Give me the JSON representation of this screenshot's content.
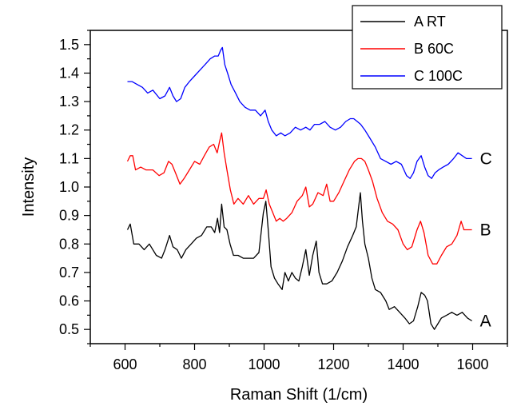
{
  "chart_data": {
    "type": "line",
    "title": "",
    "xlabel": "Raman Shift (1/cm)",
    "ylabel": "Intensity",
    "xlim": [
      500,
      1700
    ],
    "ylim": [
      0.45,
      1.55
    ],
    "xticks": [
      600,
      800,
      1000,
      1200,
      1400,
      1600
    ],
    "yticks": [
      0.5,
      0.6,
      0.7,
      0.8,
      0.9,
      1.0,
      1.1,
      1.2,
      1.3,
      1.4,
      1.5
    ],
    "ytick_labels": [
      "0.5",
      "0.6",
      "0.7",
      "0.8",
      "0.9",
      "1.0",
      "1.1",
      "1.2",
      "1.3",
      "1.4",
      "1.5"
    ],
    "grid": false,
    "legend_position": "top-right",
    "series": [
      {
        "name": "A RT",
        "end_label": "A",
        "color": "#000000",
        "x": [
          607,
          615,
          625,
          640,
          655,
          670,
          690,
          705,
          715,
          728,
          738,
          750,
          762,
          775,
          790,
          805,
          820,
          835,
          848,
          858,
          866,
          872,
          878,
          885,
          893,
          902,
          912,
          925,
          940,
          955,
          970,
          985,
          998,
          1005,
          1012,
          1020,
          1030,
          1040,
          1052,
          1060,
          1070,
          1080,
          1090,
          1100,
          1110,
          1120,
          1130,
          1140,
          1150,
          1158,
          1168,
          1180,
          1195,
          1210,
          1225,
          1240,
          1255,
          1265,
          1272,
          1277,
          1283,
          1290,
          1300,
          1310,
          1320,
          1335,
          1350,
          1360,
          1375,
          1390,
          1405,
          1418,
          1430,
          1442,
          1452,
          1462,
          1470,
          1480,
          1490,
          1500,
          1510,
          1525,
          1540,
          1555,
          1570,
          1585,
          1598
        ],
        "y": [
          0.85,
          0.87,
          0.8,
          0.8,
          0.78,
          0.8,
          0.76,
          0.75,
          0.78,
          0.83,
          0.79,
          0.78,
          0.75,
          0.78,
          0.8,
          0.82,
          0.83,
          0.86,
          0.86,
          0.84,
          0.89,
          0.84,
          0.94,
          0.86,
          0.85,
          0.8,
          0.76,
          0.76,
          0.75,
          0.75,
          0.75,
          0.77,
          0.91,
          0.95,
          0.85,
          0.72,
          0.68,
          0.66,
          0.64,
          0.7,
          0.67,
          0.7,
          0.68,
          0.67,
          0.72,
          0.78,
          0.69,
          0.76,
          0.81,
          0.7,
          0.66,
          0.66,
          0.67,
          0.7,
          0.74,
          0.79,
          0.83,
          0.86,
          0.93,
          0.98,
          0.88,
          0.8,
          0.75,
          0.68,
          0.64,
          0.63,
          0.6,
          0.57,
          0.58,
          0.56,
          0.54,
          0.52,
          0.53,
          0.58,
          0.63,
          0.62,
          0.6,
          0.52,
          0.5,
          0.52,
          0.54,
          0.55,
          0.56,
          0.55,
          0.56,
          0.54,
          0.53
        ]
      },
      {
        "name": "B 60C",
        "end_label": "B",
        "color": "#ff0000",
        "x": [
          607,
          615,
          622,
          630,
          645,
          660,
          680,
          698,
          712,
          725,
          735,
          745,
          758,
          770,
          785,
          800,
          815,
          828,
          842,
          855,
          865,
          872,
          878,
          885,
          893,
          903,
          913,
          925,
          940,
          955,
          970,
          985,
          998,
          1006,
          1015,
          1025,
          1035,
          1045,
          1055,
          1065,
          1080,
          1095,
          1110,
          1120,
          1130,
          1140,
          1155,
          1170,
          1180,
          1190,
          1200,
          1215,
          1230,
          1245,
          1260,
          1270,
          1280,
          1290,
          1300,
          1312,
          1325,
          1340,
          1355,
          1370,
          1385,
          1400,
          1412,
          1425,
          1440,
          1450,
          1460,
          1472,
          1485,
          1497,
          1510,
          1525,
          1540,
          1555,
          1567,
          1575,
          1585,
          1598
        ],
        "y": [
          1.09,
          1.11,
          1.11,
          1.06,
          1.07,
          1.06,
          1.06,
          1.04,
          1.05,
          1.09,
          1.08,
          1.05,
          1.01,
          1.03,
          1.06,
          1.09,
          1.08,
          1.11,
          1.14,
          1.15,
          1.12,
          1.16,
          1.19,
          1.12,
          1.06,
          0.99,
          0.94,
          0.96,
          0.94,
          0.97,
          0.94,
          0.96,
          0.96,
          0.99,
          0.94,
          0.91,
          0.88,
          0.89,
          0.88,
          0.89,
          0.91,
          0.95,
          0.97,
          1.0,
          0.93,
          0.94,
          0.98,
          0.97,
          1.01,
          0.95,
          0.95,
          0.98,
          1.02,
          1.06,
          1.09,
          1.1,
          1.1,
          1.09,
          1.06,
          1.02,
          0.96,
          0.91,
          0.88,
          0.87,
          0.85,
          0.8,
          0.78,
          0.79,
          0.85,
          0.88,
          0.84,
          0.76,
          0.73,
          0.73,
          0.76,
          0.79,
          0.8,
          0.83,
          0.88,
          0.85,
          0.85,
          0.85
        ]
      },
      {
        "name": "C 100C",
        "end_label": "C",
        "color": "#0000ff",
        "x": [
          607,
          620,
          635,
          650,
          665,
          680,
          700,
          715,
          728,
          738,
          748,
          760,
          772,
          785,
          800,
          815,
          830,
          845,
          858,
          868,
          875,
          880,
          887,
          895,
          905,
          918,
          930,
          945,
          960,
          975,
          990,
          1003,
          1012,
          1022,
          1035,
          1048,
          1060,
          1075,
          1090,
          1105,
          1120,
          1132,
          1145,
          1160,
          1175,
          1190,
          1205,
          1220,
          1235,
          1248,
          1258,
          1268,
          1278,
          1290,
          1305,
          1320,
          1335,
          1350,
          1365,
          1380,
          1395,
          1410,
          1420,
          1430,
          1440,
          1452,
          1462,
          1472,
          1482,
          1492,
          1502,
          1515,
          1530,
          1545,
          1558,
          1570,
          1582,
          1598
        ],
        "y": [
          1.37,
          1.37,
          1.36,
          1.35,
          1.33,
          1.34,
          1.31,
          1.32,
          1.35,
          1.32,
          1.3,
          1.31,
          1.35,
          1.37,
          1.39,
          1.41,
          1.43,
          1.45,
          1.46,
          1.46,
          1.48,
          1.49,
          1.43,
          1.4,
          1.36,
          1.33,
          1.3,
          1.28,
          1.27,
          1.27,
          1.25,
          1.27,
          1.23,
          1.2,
          1.18,
          1.19,
          1.18,
          1.19,
          1.21,
          1.2,
          1.21,
          1.2,
          1.22,
          1.22,
          1.23,
          1.21,
          1.2,
          1.21,
          1.23,
          1.24,
          1.24,
          1.23,
          1.22,
          1.2,
          1.17,
          1.14,
          1.1,
          1.09,
          1.08,
          1.09,
          1.08,
          1.04,
          1.03,
          1.05,
          1.09,
          1.11,
          1.07,
          1.04,
          1.03,
          1.05,
          1.06,
          1.07,
          1.08,
          1.1,
          1.12,
          1.11,
          1.1,
          1.1
        ]
      }
    ]
  }
}
